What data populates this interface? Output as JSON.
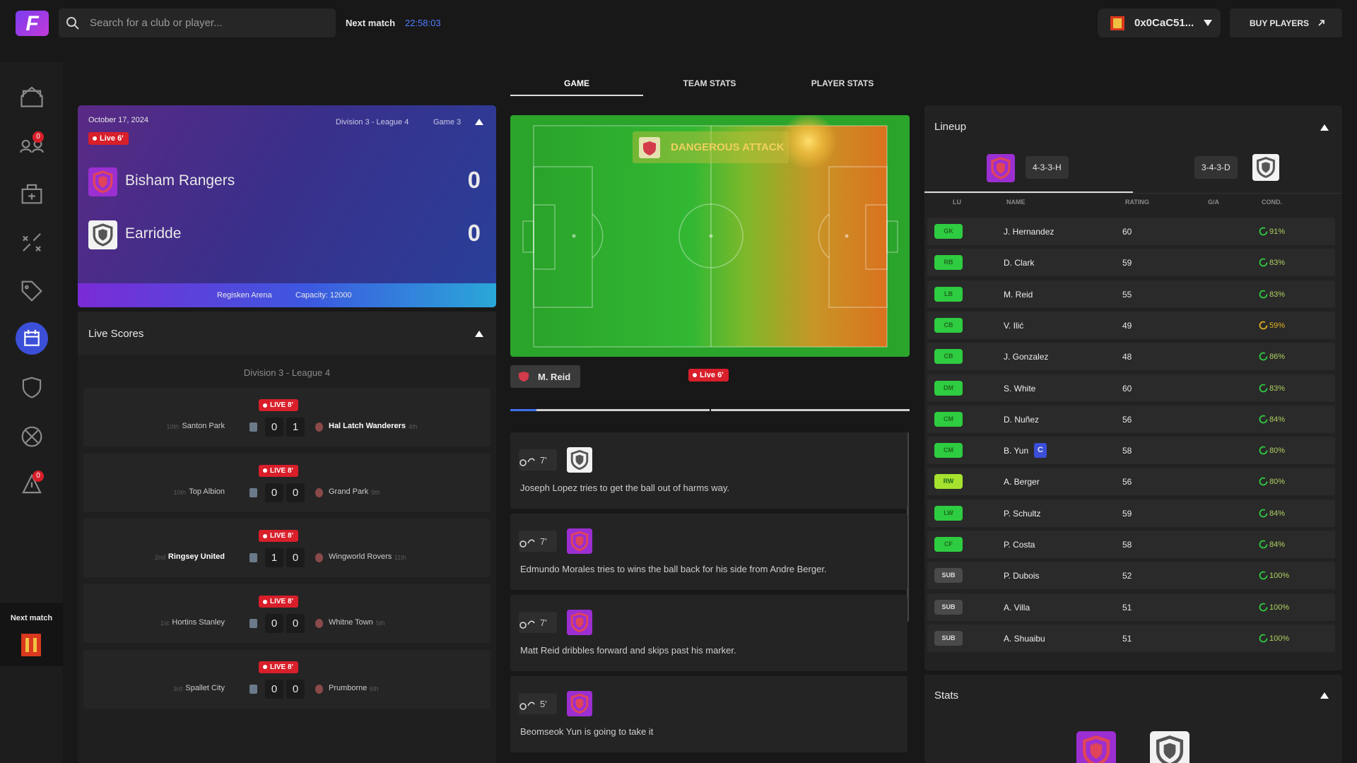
{
  "header": {
    "logo": "F",
    "search_placeholder": "Search for a club or player...",
    "next_match_label": "Next match",
    "countdown": "22:58:03",
    "wallet": "0x0CaC51...",
    "buy_button": "BUY PLAYERS"
  },
  "sidebar": {
    "badges": [
      "0",
      "0"
    ],
    "next_match_label": "Next match"
  },
  "match": {
    "date": "October 17, 2024",
    "division": "Division 3 - League 4",
    "game": "Game 3",
    "status": "Live 6'",
    "home": {
      "name": "Bisham Rangers",
      "score": "0"
    },
    "away": {
      "name": "Earridde",
      "score": "0"
    },
    "venue": "Regisken Arena",
    "capacity": "Capacity: 12000"
  },
  "live_scores": {
    "title": "Live Scores",
    "league": "Division 3 - League 4",
    "matches": [
      {
        "status": "LIVE 8'",
        "home_rank": "10th",
        "home": "Santon Park",
        "home_score": "0",
        "away_score": "1",
        "away": "Hal Latch Wanderers",
        "away_rank": "4th"
      },
      {
        "status": "LIVE 8'",
        "home_rank": "10th",
        "home": "Top Albion",
        "home_score": "0",
        "away_score": "0",
        "away": "Grand Park",
        "away_rank": "9th"
      },
      {
        "status": "LIVE 8'",
        "home_rank": "2nd",
        "home": "Ringsey United",
        "home_score": "1",
        "away_score": "0",
        "away": "Wingworld Rovers",
        "away_rank": "11th"
      },
      {
        "status": "LIVE 8'",
        "home_rank": "1st",
        "home": "Hortins Stanley",
        "home_score": "0",
        "away_score": "0",
        "away": "Whitne Town",
        "away_rank": "5th"
      },
      {
        "status": "LIVE 8'",
        "home_rank": "3rd",
        "home": "Spallet City",
        "home_score": "0",
        "away_score": "0",
        "away": "Prumborne",
        "away_rank": "6th"
      }
    ]
  },
  "tabs": {
    "items": [
      "GAME",
      "TEAM STATS",
      "PLAYER STATS"
    ],
    "active": 0
  },
  "pitch": {
    "event": "DANGEROUS ATTACK",
    "player": "M. Reid",
    "status": "Live 6'"
  },
  "commentary": [
    {
      "minute": "7'",
      "team": "away",
      "text": "Joseph Lopez tries to get the ball out of harms way."
    },
    {
      "minute": "7'",
      "team": "home",
      "text": "Edmundo Morales tries to wins the ball back for his side from Andre Berger."
    },
    {
      "minute": "7'",
      "team": "home",
      "text": "Matt Reid dribbles forward and skips past his marker."
    },
    {
      "minute": "5'",
      "team": "home",
      "text": "Beomseok Yun is going to take it"
    }
  ],
  "lineup": {
    "title": "Lineup",
    "home_formation": "4-3-3-H",
    "away_formation": "3-4-3-D",
    "columns": [
      "LU",
      "NAME",
      "RATING",
      "G/A",
      "COND."
    ],
    "rows": [
      {
        "pos": "GK",
        "name": "J. Hernandez",
        "rating": "60",
        "cond": "91%"
      },
      {
        "pos": "RB",
        "name": "D. Clark",
        "rating": "59",
        "cond": "83%"
      },
      {
        "pos": "LB",
        "name": "M. Reid",
        "rating": "55",
        "cond": "83%"
      },
      {
        "pos": "CB",
        "name": "V. Ilić",
        "rating": "49",
        "cond": "59%"
      },
      {
        "pos": "CB",
        "name": "J. Gonzalez",
        "rating": "48",
        "cond": "86%"
      },
      {
        "pos": "DM",
        "name": "S. White",
        "rating": "60",
        "cond": "83%"
      },
      {
        "pos": "CM",
        "name": "D. Nuñez",
        "rating": "56",
        "cond": "84%"
      },
      {
        "pos": "CM",
        "name": "B. Yun",
        "captain": "C",
        "rating": "58",
        "cond": "80%"
      },
      {
        "pos": "RW",
        "name": "A. Berger",
        "rating": "56",
        "cond": "80%"
      },
      {
        "pos": "LW",
        "name": "P. Schultz",
        "rating": "59",
        "cond": "84%"
      },
      {
        "pos": "CF",
        "name": "P. Costa",
        "rating": "58",
        "cond": "84%"
      },
      {
        "pos": "SUB",
        "name": "P. Dubois",
        "rating": "52",
        "cond": "100%"
      },
      {
        "pos": "SUB",
        "name": "A. Villa",
        "rating": "51",
        "cond": "100%"
      },
      {
        "pos": "SUB",
        "name": "A. Shuaibu",
        "rating": "51",
        "cond": "100%"
      }
    ]
  },
  "stats": {
    "title": "Stats"
  }
}
